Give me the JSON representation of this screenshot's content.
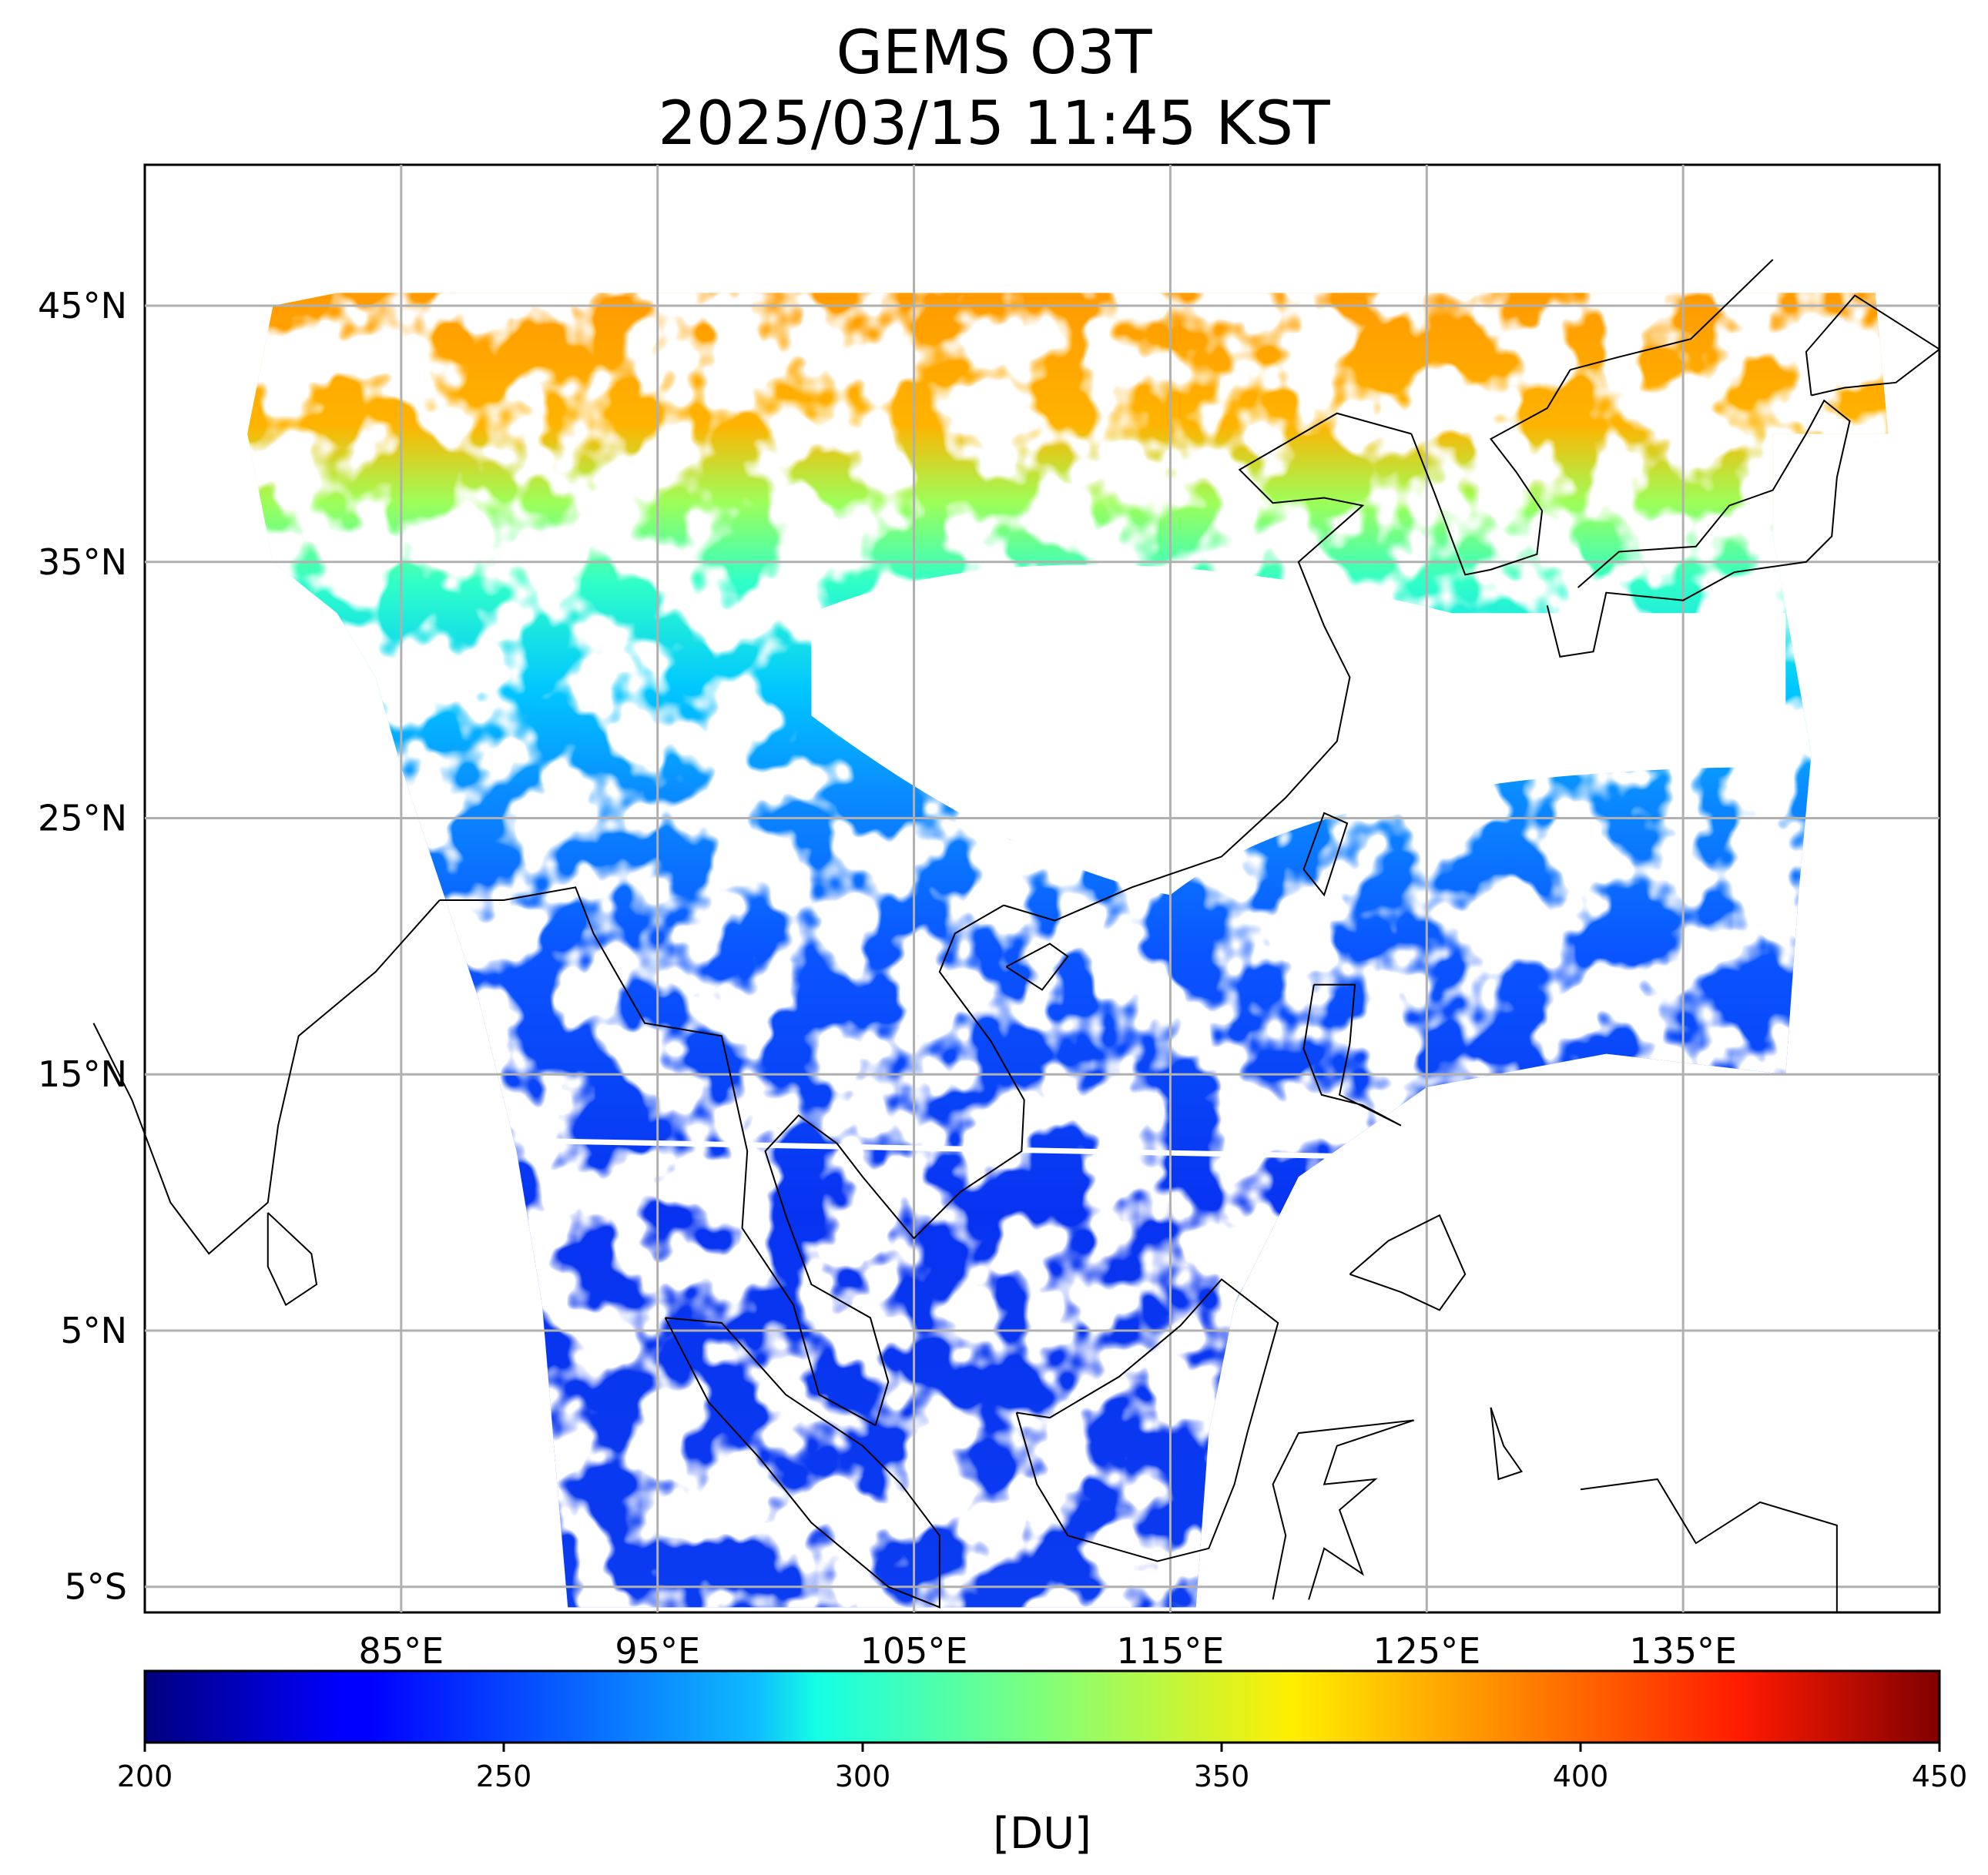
{
  "title": {
    "line1": "GEMS O3T",
    "line2": "2025/03/15 11:45 KST"
  },
  "chart_data": {
    "type": "heatmap",
    "product": "GEMS O3T",
    "timestamp": "2025/03/15 11:45 KST",
    "projection": "plate carree",
    "lon_range": [
      75,
      145
    ],
    "lat_range": [
      -6,
      50.5
    ],
    "grid": true,
    "lon_ticks": [
      {
        "value": 85,
        "label": "85°E"
      },
      {
        "value": 95,
        "label": "95°E"
      },
      {
        "value": 105,
        "label": "105°E"
      },
      {
        "value": 115,
        "label": "115°E"
      },
      {
        "value": 125,
        "label": "125°E"
      },
      {
        "value": 135,
        "label": "135°E"
      }
    ],
    "lat_ticks": [
      {
        "value": 45,
        "label": "45°N"
      },
      {
        "value": 35,
        "label": "35°N"
      },
      {
        "value": 25,
        "label": "25°N"
      },
      {
        "value": 15,
        "label": "15°N"
      },
      {
        "value": 5,
        "label": "5°N"
      },
      {
        "value": -5,
        "label": "5°S"
      }
    ],
    "colorbar": {
      "colormap": "jet",
      "min": 200,
      "max": 450,
      "ticks": [
        "200",
        "250",
        "300",
        "350",
        "400",
        "450"
      ],
      "unit_label": "[DU]"
    },
    "regions_approx_DU": [
      {
        "lat_range": [
          40,
          45.5
        ],
        "value": 385
      },
      {
        "lat_range": [
          35,
          40
        ],
        "value": 330
      },
      {
        "lat_range": [
          27,
          33
        ],
        "value": 275
      },
      {
        "lat_range": [
          15,
          27
        ],
        "value": 255
      },
      {
        "lat_range": [
          -5,
          15
        ],
        "value": 235
      }
    ]
  }
}
